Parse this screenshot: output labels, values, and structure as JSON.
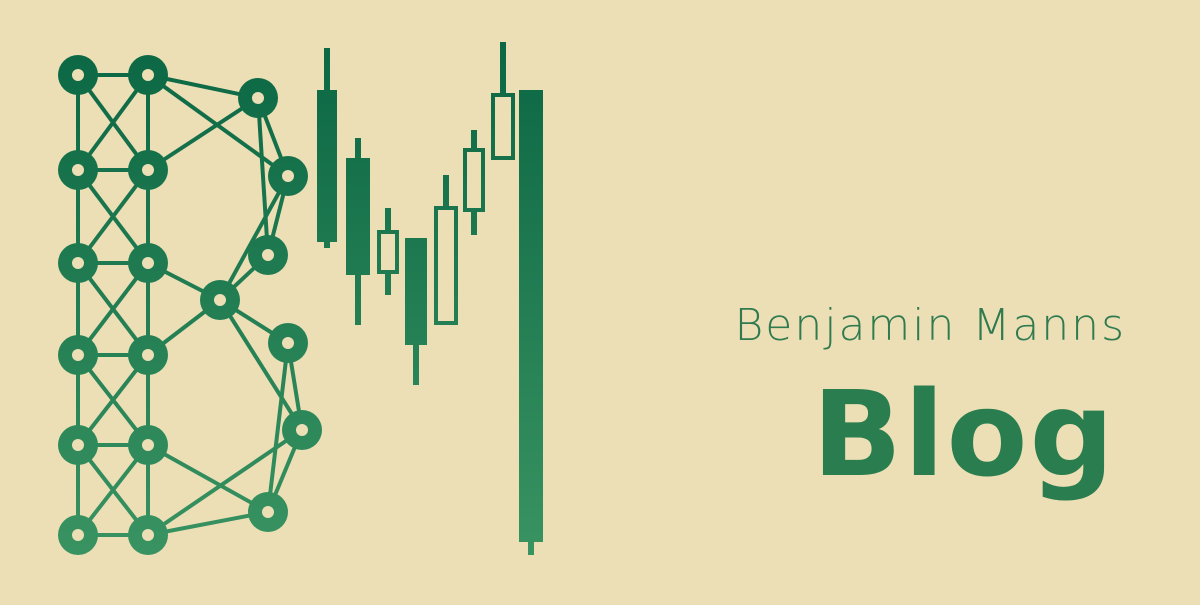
{
  "brand": {
    "author_name": "Benjamin Manns",
    "subtitle": "Blog",
    "colors": {
      "background": "#ecdfb5",
      "green_dark": "#0b6744",
      "green_light": "#3a9462"
    },
    "logo": {
      "monogram": "BM",
      "icons": [
        "network-graph-b-icon",
        "candlestick-m-icon"
      ]
    }
  }
}
